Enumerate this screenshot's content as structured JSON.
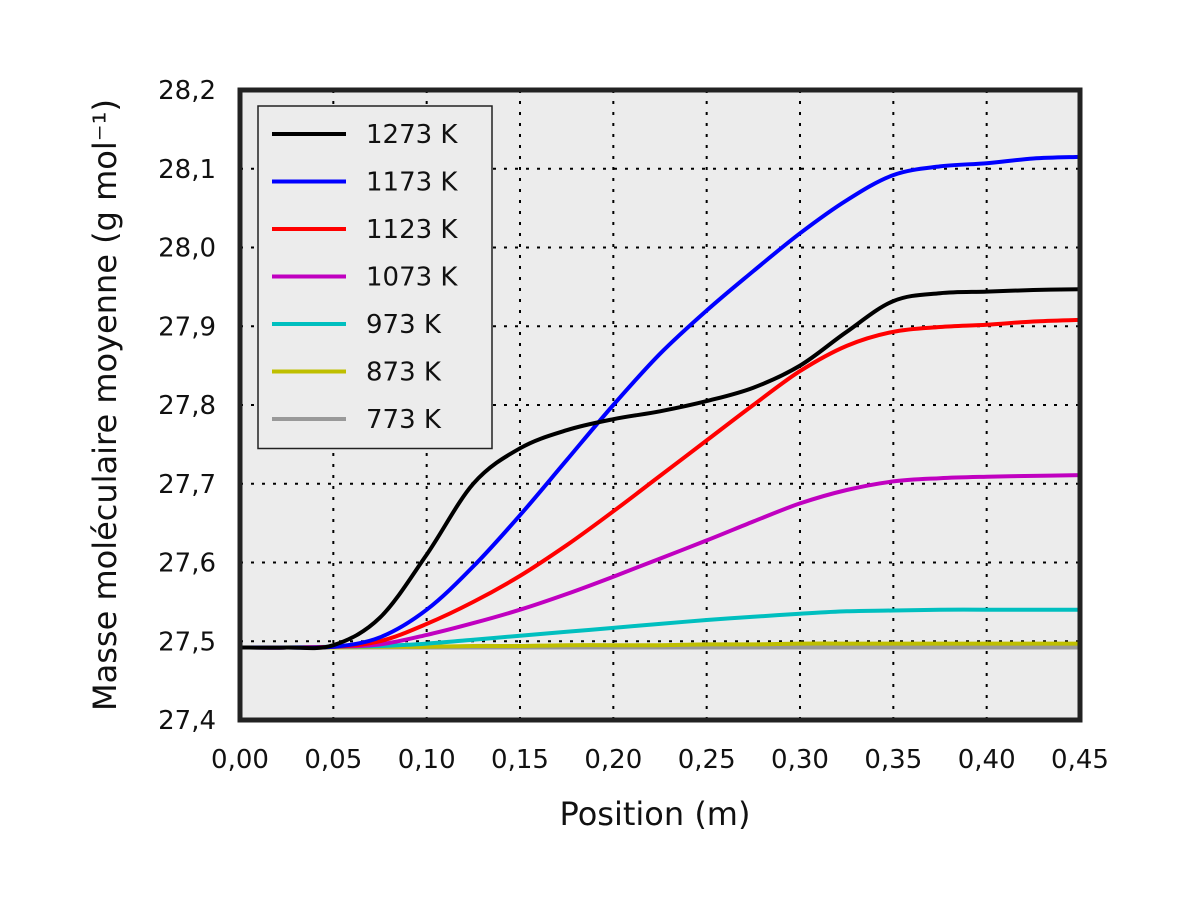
{
  "chart_data": {
    "type": "line",
    "xlabel": "Position (m)",
    "ylabel": "Masse moléculaire moyenne (g mol⁻¹)",
    "xlim": [
      0.0,
      0.45
    ],
    "ylim": [
      27.4,
      28.2
    ],
    "xticks": [
      "0,00",
      "0,05",
      "0,10",
      "0,15",
      "0,20",
      "0,25",
      "0,30",
      "0,35",
      "0,40",
      "0,45"
    ],
    "yticks": [
      "27,4",
      "27,5",
      "27,6",
      "27,7",
      "27,8",
      "27,9",
      "28,0",
      "28,1",
      "28,2"
    ],
    "grid": true,
    "legend_position": "top-left",
    "x": [
      0.0,
      0.025,
      0.05,
      0.075,
      0.1,
      0.125,
      0.15,
      0.175,
      0.2,
      0.225,
      0.25,
      0.275,
      0.3,
      0.325,
      0.35,
      0.375,
      0.4,
      0.425,
      0.45
    ],
    "series": [
      {
        "name": "1273 K",
        "color": "#000000",
        "values": [
          27.492,
          27.492,
          27.495,
          27.53,
          27.61,
          27.7,
          27.745,
          27.768,
          27.782,
          27.792,
          27.805,
          27.822,
          27.85,
          27.893,
          27.932,
          27.942,
          27.944,
          27.946,
          27.947
        ]
      },
      {
        "name": "1173 K",
        "color": "#0000ff",
        "values": [
          27.492,
          27.492,
          27.493,
          27.505,
          27.54,
          27.595,
          27.66,
          27.73,
          27.8,
          27.865,
          27.92,
          27.97,
          28.018,
          28.06,
          28.092,
          28.103,
          28.107,
          28.113,
          28.115
        ]
      },
      {
        "name": "1123 K",
        "color": "#ff0000",
        "values": [
          27.492,
          27.492,
          27.493,
          27.5,
          27.522,
          27.55,
          27.583,
          27.622,
          27.665,
          27.71,
          27.755,
          27.8,
          27.843,
          27.875,
          27.893,
          27.899,
          27.902,
          27.906,
          27.908
        ]
      },
      {
        "name": "1073 K",
        "color": "#c000c0",
        "values": [
          27.492,
          27.492,
          27.493,
          27.496,
          27.508,
          27.523,
          27.54,
          27.56,
          27.582,
          27.605,
          27.628,
          27.652,
          27.675,
          27.692,
          27.703,
          27.707,
          27.709,
          27.71,
          27.711
        ]
      },
      {
        "name": "973 K",
        "color": "#00bfbf",
        "values": [
          27.492,
          27.492,
          27.493,
          27.494,
          27.497,
          27.502,
          27.507,
          27.512,
          27.517,
          27.522,
          27.527,
          27.531,
          27.535,
          27.538,
          27.539,
          27.54,
          27.54,
          27.54,
          27.54
        ]
      },
      {
        "name": "873 K",
        "color": "#bfbf00",
        "values": [
          27.492,
          27.492,
          27.492,
          27.493,
          27.493,
          27.494,
          27.494,
          27.495,
          27.495,
          27.495,
          27.496,
          27.496,
          27.497,
          27.497,
          27.497,
          27.497,
          27.497,
          27.497,
          27.497
        ]
      },
      {
        "name": "773 K",
        "color": "#999999",
        "values": [
          27.492,
          27.492,
          27.492,
          27.492,
          27.492,
          27.492,
          27.492,
          27.492,
          27.492,
          27.492,
          27.492,
          27.492,
          27.492,
          27.492,
          27.492,
          27.492,
          27.492,
          27.492,
          27.492
        ]
      }
    ]
  }
}
